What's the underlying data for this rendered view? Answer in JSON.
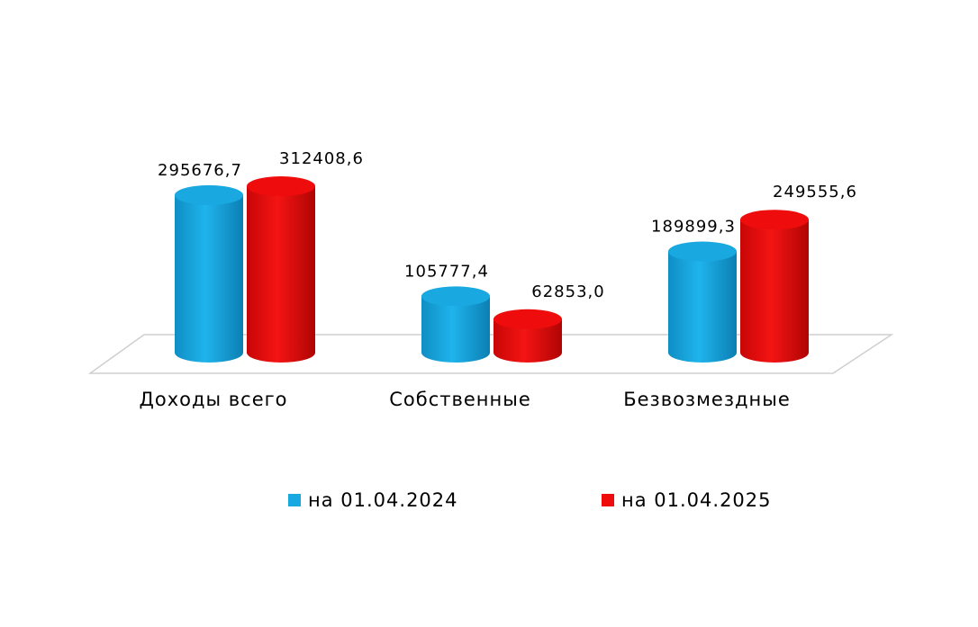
{
  "chart_data": {
    "type": "bar",
    "style": "3d-cylinder",
    "categories": [
      "Доходы всего",
      "Собственные",
      "Безвозмездные"
    ],
    "series": [
      {
        "name": "на 01.04.2024",
        "color": "#19a8e0",
        "values": [
          295676.7,
          105777.4,
          189899.3
        ],
        "labels": [
          "295676,7",
          "105777,4",
          "189899,3"
        ]
      },
      {
        "name": "на 01.04.2025",
        "color": "#ee0c0c",
        "values": [
          312408.6,
          62853.0,
          249555.6
        ],
        "labels": [
          "312408,6",
          "62853,0",
          "249555,6"
        ]
      }
    ],
    "ylim": [
      0,
      312408.6
    ],
    "legend": "bottom",
    "grid": false
  }
}
